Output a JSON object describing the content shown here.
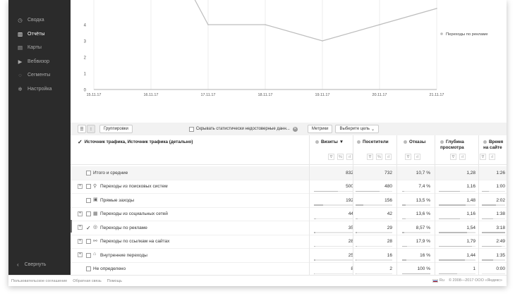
{
  "sidebar": {
    "items": [
      {
        "label": "Сводка",
        "icon": "clock-icon",
        "active": false
      },
      {
        "label": "Отчёты",
        "icon": "bar-chart-icon",
        "active": true
      },
      {
        "label": "Карты",
        "icon": "map-icon",
        "active": false
      },
      {
        "label": "Вебвизор",
        "icon": "play-icon",
        "active": false
      },
      {
        "label": "Сегменты",
        "icon": "segments-icon",
        "active": false
      },
      {
        "label": "Настройка",
        "icon": "gear-icon",
        "active": false
      }
    ],
    "collapse_label": "Свернуть"
  },
  "chart_data": {
    "type": "line",
    "x": [
      "15.11.17",
      "16.11.17",
      "17.11.17",
      "18.11.17",
      "19.11.17",
      "20.11.17",
      "21.11.17"
    ],
    "y_ticks": [
      "0",
      "1",
      "2",
      "3",
      "4"
    ],
    "series": [
      {
        "name": "Переходы по рекламе",
        "values": [
          null,
          null,
          4,
          4,
          3,
          4,
          5
        ]
      }
    ],
    "ylim": [
      0,
      5
    ],
    "legend_position": "right",
    "series_color": "#bdbdbd"
  },
  "toolbar": {
    "grouping_label": "Группировки",
    "hide_label": "Скрывать статистически недостоверные данн...",
    "metrics_label": "Метрики",
    "goal_label": "Выберите цель"
  },
  "table": {
    "dimension_header": "Источник трафика, Источник трафика (детально)",
    "columns": [
      {
        "label": "Визиты",
        "sort": "▼"
      },
      {
        "label": "Посетители",
        "sort": ""
      },
      {
        "label": "Отказы",
        "sort": ""
      },
      {
        "label": "Глубина просмотра",
        "sort": ""
      },
      {
        "label": "Время на сайте",
        "sort": ""
      }
    ],
    "rows": [
      {
        "name": "Итого и средние",
        "values": [
          "832",
          "732",
          "10,7 %",
          "1,28",
          "1:26"
        ],
        "expandable": false,
        "checked": false,
        "icon": "",
        "total": true
      },
      {
        "name": "Переходы из поисковых систем",
        "values": [
          "500",
          "480",
          "7,4 %",
          "1,16",
          "1:00"
        ],
        "expandable": true,
        "checked": false,
        "icon": "search-icon",
        "total": false
      },
      {
        "name": "Прямые заходы",
        "values": [
          "192",
          "156",
          "13,5 %",
          "1,48",
          "2:02"
        ],
        "expandable": false,
        "checked": false,
        "icon": "direct-icon",
        "total": false
      },
      {
        "name": "Переходы из социальных сетей",
        "values": [
          "44",
          "42",
          "13,6 %",
          "1,16",
          "1:38"
        ],
        "expandable": true,
        "checked": false,
        "icon": "social-icon",
        "total": false
      },
      {
        "name": "Переходы по рекламе",
        "values": [
          "35",
          "29",
          "8,57 %",
          "1,54",
          "3:18"
        ],
        "expandable": true,
        "checked": true,
        "icon": "ads-icon",
        "total": false
      },
      {
        "name": "Переходы по ссылкам на сайтах",
        "values": [
          "28",
          "28",
          "17,9 %",
          "1,79",
          "2:49"
        ],
        "expandable": true,
        "checked": false,
        "icon": "link-icon",
        "total": false
      },
      {
        "name": "Внутренние переходы",
        "values": [
          "25",
          "16",
          "16 %",
          "1,44",
          "1:35"
        ],
        "expandable": true,
        "checked": false,
        "icon": "internal-icon",
        "total": false
      },
      {
        "name": "Не определено",
        "values": [
          "8",
          "2",
          "100 %",
          "1",
          "0:00"
        ],
        "expandable": false,
        "checked": false,
        "icon": "",
        "total": false
      }
    ]
  },
  "footer": {
    "links": [
      "Пользовательское соглашение",
      "Обратная связь",
      "Помощь"
    ],
    "lang": "Ru",
    "copyright": "© 2008—2017 ООО «Яндекс»"
  }
}
